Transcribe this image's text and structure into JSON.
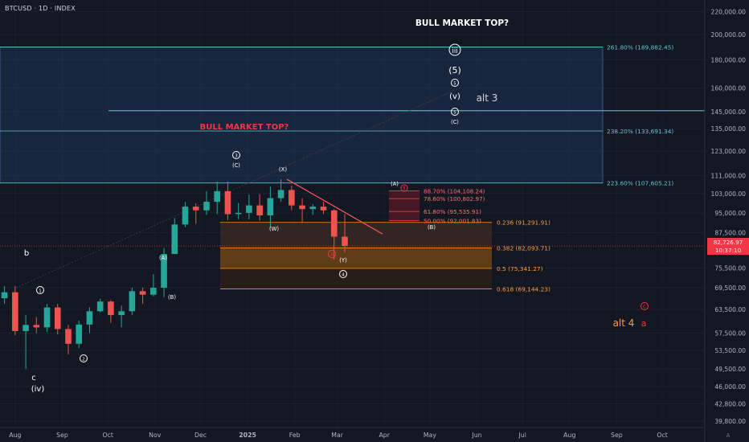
{
  "header": {
    "symbol_title": "BTCUSD · 1D · INDEX"
  },
  "price_scale": {
    "ticks": [
      "220,000.00",
      "200,000.00",
      "180,000.00",
      "160,000.00",
      "145,000.00",
      "135,000.00",
      "123,000.00",
      "111,000.00",
      "103,000.00",
      "95,000.00",
      "87,500.00",
      "75,500.00",
      "69,500.00",
      "63,500.00",
      "57,500.00",
      "53,500.00",
      "49,500.00",
      "46,000.00",
      "42,800.00",
      "39,800.00"
    ],
    "current_price": "82,726.97",
    "countdown": "10:37:10",
    "auto_label": "A"
  },
  "time_axis": {
    "labels": [
      "Aug",
      "Sep",
      "Oct",
      "Nov",
      "Dec",
      "2025",
      "Feb",
      "Mar",
      "Apr",
      "May",
      "Jun",
      "Jul",
      "Aug",
      "Sep",
      "Oct"
    ]
  },
  "colors": {
    "background": "#131722",
    "up_candle": "#26a69a",
    "down_candle": "#ef5350",
    "fib_line": "#5ec9d8",
    "fib_zone": "#1e3a5f",
    "retrace_zone": "#ff9800",
    "trendline": "#f23645",
    "label_white": "#ffffff",
    "label_red": "#f23645"
  },
  "annotations": {
    "bull_top_white": "BULL MARKET TOP?",
    "bull_top_red": "BULL MARKET TOP?",
    "alt3": "alt 3",
    "alt4": "alt 4",
    "alt4_a": "a",
    "circ_iii": "iii",
    "wave_5_paren": "(5)",
    "circ_5_upper": "5",
    "wave_v": "(v)",
    "circ_5_lower": "5",
    "wave_C_top": "(C)",
    "circ_3": "3",
    "wave_C_peak": "(C)",
    "wave_X": "(X)",
    "wave_W": "(W)",
    "wave_A_nov": "(A)",
    "wave_B_nov": "(B)",
    "wave_b": "b",
    "circ_1": "1",
    "circ_2": "2",
    "wave_c": "c",
    "wave_iv": "(iv)",
    "circ_A_red": "A",
    "wave_Y": "(Y)",
    "circ_4": "4",
    "wave_A_apr": "(A)",
    "circ_B_red": "B",
    "wave_B_may": "(B)",
    "circ_C_red": "C"
  },
  "fib_extension_labels": {
    "f2618": "261.80% (189,882.45)",
    "f2382": "238.20% (133,691.34)",
    "f2236": "223.60% (107,605.21)"
  },
  "fib_retracement_labels": {
    "r0236": "0.236 (91,291.91)",
    "r0382": "0.382 (82,093.71)",
    "r05": "0.5 (75,341.27)",
    "r0618": "0.618 (69,144.23)"
  },
  "small_fib_labels": {
    "s887": "88.70% (104,108.24)",
    "s786": "78.60% (100,802.97)",
    "s618": "61.80% (95,535.91)",
    "s50": "50.00% (92,001.83)"
  },
  "chart_data": {
    "type": "candlestick",
    "symbol": "BTCUSD",
    "timeframe": "1D",
    "exchange": "INDEX",
    "y_scale": "log",
    "ylim": [
      36500,
      231000
    ],
    "x_range": [
      "2024-07-22",
      "2025-10-20"
    ],
    "xlabels": [
      "Aug",
      "Sep",
      "Oct",
      "Nov",
      "Dec",
      "2025",
      "Feb",
      "Mar",
      "Apr",
      "May",
      "Jun",
      "Jul",
      "Aug",
      "Sep",
      "Oct"
    ],
    "series": [
      {
        "name": "BTCUSD",
        "x": [
          "2024-07-22",
          "2024-07-29",
          "2024-08-05",
          "2024-08-12",
          "2024-08-19",
          "2024-08-26",
          "2024-09-02",
          "2024-09-09",
          "2024-09-16",
          "2024-09-23",
          "2024-09-30",
          "2024-10-07",
          "2024-10-14",
          "2024-10-21",
          "2024-10-28",
          "2024-11-04",
          "2024-11-11",
          "2024-11-18",
          "2024-11-25",
          "2024-12-02",
          "2024-12-09",
          "2024-12-16",
          "2024-12-23",
          "2024-12-30",
          "2025-01-06",
          "2025-01-13",
          "2025-01-20",
          "2025-01-27",
          "2025-02-03",
          "2025-02-10",
          "2025-02-17",
          "2025-02-24",
          "2025-03-03"
        ],
        "open": [
          66500,
          68200,
          58000,
          59500,
          58900,
          64000,
          58500,
          55000,
          59600,
          63000,
          65600,
          62000,
          63000,
          68500,
          67500,
          69500,
          80000,
          90500,
          97500,
          96000,
          99500,
          104000,
          94500,
          95000,
          98000,
          94000,
          101000,
          104500,
          98000,
          96500,
          97500,
          96000,
          86000
        ],
        "high": [
          70000,
          70000,
          62000,
          61500,
          65000,
          65000,
          59500,
          60600,
          64000,
          66400,
          66000,
          64500,
          69500,
          69500,
          73500,
          82000,
          93000,
          99500,
          98800,
          104000,
          108200,
          108300,
          99000,
          102500,
          102700,
          106000,
          109300,
          106500,
          101000,
          98500,
          99500,
          96500,
          94500
        ],
        "low": [
          65000,
          57000,
          49500,
          57500,
          57800,
          57200,
          52600,
          54000,
          57500,
          62700,
          60000,
          58900,
          62000,
          65000,
          67000,
          66800,
          80000,
          89500,
          90800,
          94200,
          94500,
          92200,
          92500,
          92500,
          92000,
          89300,
          99500,
          96000,
          91300,
          94200,
          94500,
          78200,
          80500
        ],
        "close": [
          68200,
          58000,
          59500,
          58900,
          64000,
          58500,
          55000,
          59600,
          63000,
          65600,
          62000,
          63000,
          68500,
          67500,
          69500,
          80000,
          90500,
          97500,
          96000,
          99500,
          104000,
          94500,
          95000,
          98000,
          94000,
          101000,
          104500,
          98000,
          96500,
          97500,
          96000,
          86000,
          82727
        ]
      }
    ],
    "fib_extension": [
      {
        "label": "261.80%",
        "price": 189882.45
      },
      {
        "label": "238.20%",
        "price": 133691.34
      },
      {
        "label": "223.60%",
        "price": 107605.21
      }
    ],
    "fib_retracement": [
      {
        "label": "0.236",
        "price": 91291.91
      },
      {
        "label": "0.382",
        "price": 82093.71
      },
      {
        "label": "0.5",
        "price": 75341.27
      },
      {
        "label": "0.618",
        "price": 69144.23
      }
    ],
    "fib_small": [
      {
        "label": "88.70%",
        "price": 104108.24
      },
      {
        "label": "78.60%",
        "price": 100802.97
      },
      {
        "label": "61.80%",
        "price": 95535.91
      },
      {
        "label": "50.00%",
        "price": 92001.83
      }
    ],
    "horizontal_line": {
      "label": "alt 3",
      "price": 145500
    },
    "current_price": 82726.97
  }
}
